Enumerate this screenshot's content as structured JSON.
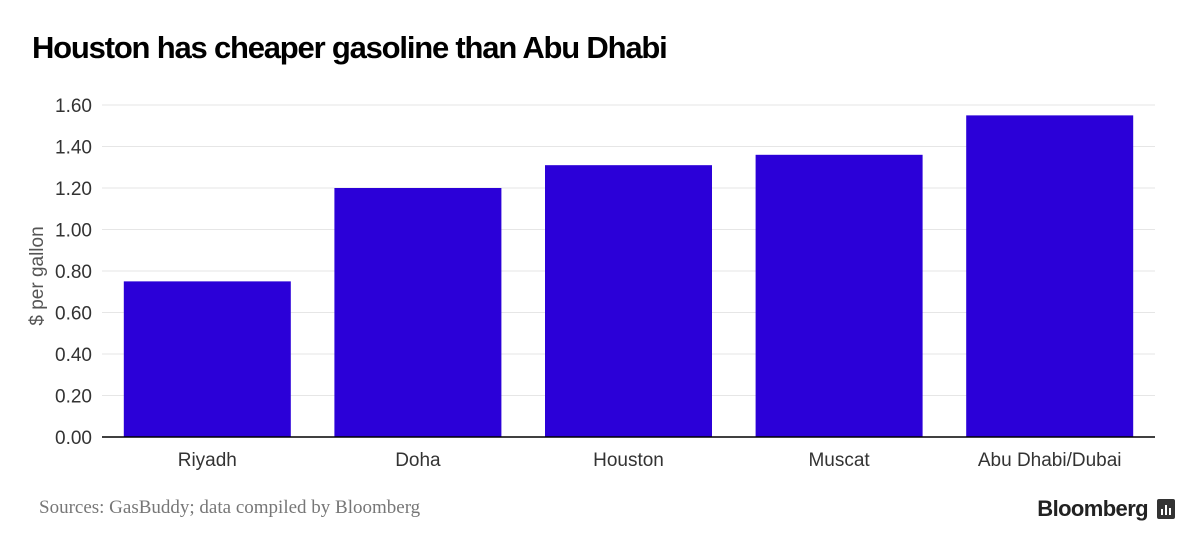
{
  "title": "Houston has cheaper gasoline than Abu Dhabi",
  "source": "Sources: GasBuddy; data compiled by Bloomberg",
  "brand": "Bloomberg",
  "brand_icon": "bar-chart-icon",
  "chart_data": {
    "type": "bar",
    "title": "Houston has cheaper gasoline than Abu Dhabi",
    "xlabel": "",
    "ylabel": "$ per gallon",
    "categories": [
      "Riyadh",
      "Doha",
      "Houston",
      "Muscat",
      "Abu Dhabi/Dubai"
    ],
    "values": [
      0.75,
      1.2,
      1.31,
      1.36,
      1.55
    ],
    "ylim": [
      0,
      1.6
    ],
    "yticks": [
      0,
      0.2,
      0.4,
      0.6,
      0.8,
      1.0,
      1.2,
      1.4,
      1.6
    ],
    "ytick_labels": [
      "0.00",
      "0.20",
      "0.40",
      "0.60",
      "0.80",
      "1.00",
      "1.20",
      "1.40",
      "1.60"
    ],
    "grid": true,
    "legend": "none",
    "bar_color": "#2b00d8",
    "grid_color": "#e6e6e6",
    "axis_color": "#000000"
  }
}
